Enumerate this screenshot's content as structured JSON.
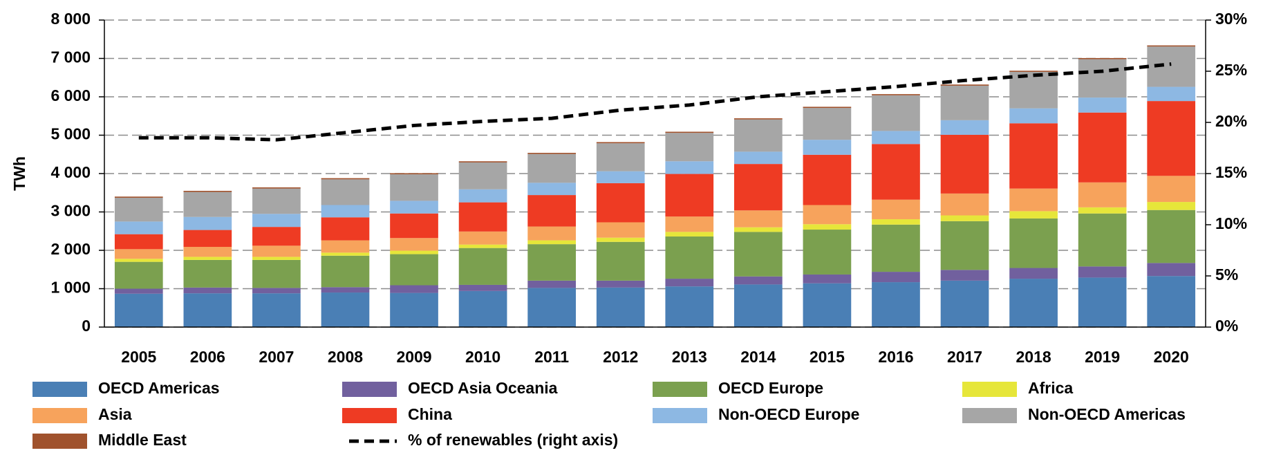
{
  "chart_data": {
    "type": "stacked_bar",
    "y_label": "TWh",
    "categories": [
      "2005",
      "2006",
      "2007",
      "2008",
      "2009",
      "2010",
      "2011",
      "2012",
      "2013",
      "2014",
      "2015",
      "2016",
      "2017",
      "2018",
      "2019",
      "2020"
    ],
    "series": [
      {
        "name": "OECD Americas",
        "color": "#4a7fb5",
        "values": [
          870,
          880,
          880,
          900,
          890,
          940,
          1020,
          1030,
          1060,
          1110,
          1140,
          1170,
          1210,
          1260,
          1290,
          1330
        ]
      },
      {
        "name": "OECD Asia Oceania",
        "color": "#71609e",
        "values": [
          130,
          150,
          140,
          140,
          200,
          160,
          190,
          180,
          200,
          210,
          230,
          270,
          280,
          280,
          290,
          340
        ]
      },
      {
        "name": "OECD Europe",
        "color": "#7ba04f",
        "values": [
          700,
          720,
          730,
          820,
          810,
          960,
          950,
          1010,
          1100,
          1160,
          1170,
          1230,
          1270,
          1290,
          1380,
          1380
        ]
      },
      {
        "name": "Africa",
        "color": "#e6e63a",
        "values": [
          80,
          80,
          80,
          80,
          90,
          90,
          100,
          110,
          120,
          120,
          140,
          140,
          150,
          190,
          160,
          210
        ]
      },
      {
        "name": "Asia",
        "color": "#f7a35c",
        "values": [
          250,
          260,
          290,
          320,
          330,
          340,
          360,
          400,
          400,
          440,
          500,
          510,
          570,
          590,
          650,
          680
        ]
      },
      {
        "name": "China",
        "color": "#ee3b23",
        "values": [
          390,
          440,
          490,
          600,
          640,
          760,
          820,
          1020,
          1110,
          1210,
          1310,
          1450,
          1530,
          1700,
          1820,
          1950
        ]
      },
      {
        "name": "Non-OECD Europe",
        "color": "#8db8e3",
        "values": [
          330,
          340,
          340,
          320,
          330,
          340,
          320,
          310,
          330,
          320,
          390,
          340,
          380,
          390,
          390,
          370
        ]
      },
      {
        "name": "Non-OECD Americas",
        "color": "#a6a6a6",
        "values": [
          620,
          650,
          660,
          670,
          690,
          700,
          750,
          730,
          740,
          840,
          830,
          930,
          900,
          950,
          1000,
          1050
        ]
      },
      {
        "name": "Middle East",
        "color": "#a0522d",
        "values": [
          30,
          30,
          30,
          30,
          30,
          30,
          30,
          30,
          30,
          30,
          30,
          30,
          30,
          30,
          30,
          30
        ]
      },
      {
        "name": "% of renewables (right axis)",
        "color": "#000000",
        "axis": "y2",
        "line_style": "dashed",
        "values": [
          18.5,
          18.5,
          18.3,
          19.0,
          19.7,
          20.1,
          20.4,
          21.2,
          21.7,
          22.5,
          23.0,
          23.5,
          24.1,
          24.6,
          25.0,
          25.7
        ]
      }
    ],
    "ylim": [
      0,
      8000
    ],
    "yticks": [
      0,
      {
        "value": 1000,
        "label": "1 000"
      },
      {
        "value": 2000,
        "label": "2 000"
      },
      {
        "value": 3000,
        "label": "3 000"
      },
      {
        "value": 4000,
        "label": "4 000"
      },
      {
        "value": 5000,
        "label": "5 000"
      },
      {
        "value": 6000,
        "label": "6 000"
      },
      {
        "value": 7000,
        "label": "7 000"
      },
      {
        "value": 8000,
        "label": "8 000"
      }
    ],
    "y2lim": [
      0,
      30
    ],
    "y2ticks": [
      {
        "value": 0,
        "label": "0%"
      },
      {
        "value": 5,
        "label": "5%"
      },
      {
        "value": 10,
        "label": "10%"
      },
      {
        "value": 15,
        "label": "15%"
      },
      {
        "value": 20,
        "label": "20%"
      },
      {
        "value": 25,
        "label": "25%"
      },
      {
        "value": 30,
        "label": "30%"
      }
    ],
    "grid": true,
    "legend": "bottom"
  }
}
